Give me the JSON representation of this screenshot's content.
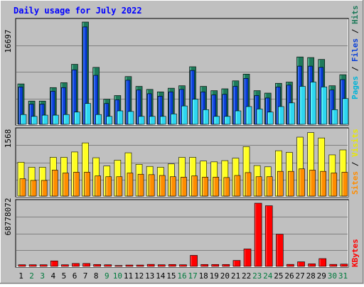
{
  "title": "Daily usage for July 2022",
  "colors": {
    "background": "#c0c0c0",
    "title": "#0000ff",
    "hits": "#1e7a5a",
    "files": "#0a3fd8",
    "pages": "#2ed6f0",
    "visits": "#ffff22",
    "sites": "#ff8c00",
    "kbytes": "#ff0000",
    "weekend_label": "#007a3d",
    "weekday_label": "#000000"
  },
  "chart_data": [
    {
      "type": "bar",
      "panel": "top",
      "title": "Daily usage for July 2022",
      "ylabel_max": "16697",
      "ylim": [
        0,
        16697
      ],
      "grid": true,
      "legend": [
        "Pages",
        "Files",
        "Hits"
      ],
      "legend_placement": "right-vertical",
      "categories": [
        "1",
        "2",
        "3",
        "4",
        "5",
        "6",
        "7",
        "8",
        "9",
        "10",
        "11",
        "12",
        "13",
        "14",
        "15",
        "16",
        "17",
        "18",
        "19",
        "20",
        "21",
        "22",
        "23",
        "24",
        "25",
        "26",
        "27",
        "28",
        "29",
        "30",
        "31"
      ],
      "series": [
        {
          "name": "Hits",
          "values": [
            6600,
            3800,
            3800,
            6000,
            6800,
            9800,
            16697,
            9300,
            4100,
            4700,
            7800,
            6200,
            5700,
            5300,
            5900,
            6300,
            9400,
            6200,
            5500,
            5800,
            7100,
            8200,
            5500,
            5100,
            6700,
            6900,
            11000,
            10900,
            10600,
            6300,
            8100
          ]
        },
        {
          "name": "Files",
          "values": [
            6100,
            3300,
            3300,
            5400,
            6000,
            8900,
            15900,
            8000,
            3400,
            4000,
            7200,
            5600,
            5000,
            4600,
            5300,
            5700,
            8800,
            5300,
            4800,
            4900,
            6200,
            7500,
            4700,
            4300,
            6100,
            6400,
            9500,
            9500,
            9300,
            5600,
            7300
          ]
        },
        {
          "name": "Pages",
          "values": [
            1600,
            1300,
            1500,
            1500,
            1600,
            2000,
            3400,
            1600,
            1300,
            2200,
            2100,
            1300,
            1300,
            1300,
            1700,
            3000,
            4100,
            2400,
            1300,
            1300,
            2200,
            2900,
            2500,
            2000,
            2900,
            3500,
            6200,
            6900,
            6100,
            2400,
            4200
          ]
        }
      ]
    },
    {
      "type": "bar",
      "panel": "middle",
      "ylabel_max": "1568",
      "ylim": [
        0,
        1568
      ],
      "grid": true,
      "legend": [
        "Sites",
        "Visits"
      ],
      "legend_placement": "right-vertical",
      "categories": [
        "1",
        "2",
        "3",
        "4",
        "5",
        "6",
        "7",
        "8",
        "9",
        "10",
        "11",
        "12",
        "13",
        "14",
        "15",
        "16",
        "17",
        "18",
        "19",
        "20",
        "21",
        "22",
        "23",
        "24",
        "25",
        "26",
        "27",
        "28",
        "29",
        "30",
        "31"
      ],
      "series": [
        {
          "name": "Visits",
          "values": [
            820,
            700,
            700,
            940,
            940,
            1070,
            1290,
            930,
            730,
            870,
            1050,
            770,
            720,
            700,
            780,
            940,
            940,
            850,
            830,
            860,
            920,
            1200,
            740,
            710,
            1100,
            1060,
            1430,
            1540,
            1410,
            1000,
            1120
          ]
        },
        {
          "name": "Sites",
          "values": [
            420,
            380,
            380,
            630,
            560,
            580,
            580,
            490,
            470,
            470,
            560,
            530,
            520,
            500,
            470,
            460,
            490,
            460,
            460,
            450,
            500,
            570,
            470,
            470,
            600,
            600,
            660,
            630,
            600,
            560,
            580
          ]
        }
      ]
    },
    {
      "type": "bar",
      "panel": "bottom",
      "ylabel_max": "68778072",
      "ylim": [
        0,
        68778072
      ],
      "grid": true,
      "legend": [
        "KBytes"
      ],
      "legend_placement": "right-vertical",
      "categories": [
        "1",
        "2",
        "3",
        "4",
        "5",
        "6",
        "7",
        "8",
        "9",
        "10",
        "11",
        "12",
        "13",
        "14",
        "15",
        "16",
        "17",
        "18",
        "19",
        "20",
        "21",
        "22",
        "23",
        "24",
        "25",
        "26",
        "27",
        "28",
        "29",
        "30",
        "31"
      ],
      "series": [
        {
          "name": "KBytes",
          "values": [
            1800000,
            1800000,
            1800000,
            6000000,
            1800000,
            3200000,
            3200000,
            2100000,
            1800000,
            1000000,
            1500000,
            1500000,
            2200000,
            1800000,
            2100000,
            1800000,
            12000000,
            2100000,
            2100000,
            2100000,
            6500000,
            19000000,
            68778072,
            66000000,
            35000000,
            2200000,
            5000000,
            2800000,
            8500000,
            2200000,
            2500000
          ]
        }
      ]
    }
  ],
  "day_labels": [
    "1",
    "2",
    "3",
    "4",
    "5",
    "6",
    "7",
    "8",
    "9",
    "10",
    "11",
    "12",
    "13",
    "14",
    "15",
    "16",
    "17",
    "18",
    "19",
    "20",
    "21",
    "22",
    "23",
    "24",
    "25",
    "26",
    "27",
    "28",
    "29",
    "30",
    "31"
  ],
  "weekend_days": [
    2,
    3,
    9,
    10,
    16,
    17,
    23,
    24,
    30,
    31
  ]
}
